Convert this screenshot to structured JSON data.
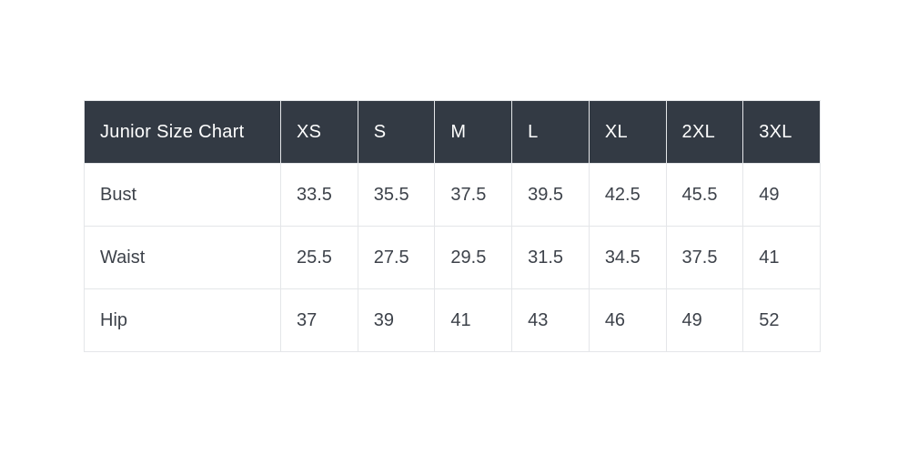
{
  "page": {
    "background_color": "#ffffff"
  },
  "table": {
    "title": "Junior Size Chart",
    "header_bg_color": "#333a44",
    "header_text_color": "#ffffff",
    "body_text_color": "#3d424a",
    "border_color": "#e4e6e9",
    "columns": [
      "XS",
      "S",
      "M",
      "L",
      "XL",
      "2XL",
      "3XL"
    ],
    "rows": [
      {
        "label": "Bust",
        "values": [
          "33.5",
          "35.5",
          "37.5",
          "39.5",
          "42.5",
          "45.5",
          "49"
        ]
      },
      {
        "label": "Waist",
        "values": [
          "25.5",
          "27.5",
          "29.5",
          "31.5",
          "34.5",
          "37.5",
          "41"
        ]
      },
      {
        "label": "Hip",
        "values": [
          "37",
          "39",
          "41",
          "43",
          "46",
          "49",
          "52"
        ]
      }
    ]
  },
  "chart_data": {
    "type": "table",
    "title": "Junior Size Chart",
    "columns": [
      "XS",
      "S",
      "M",
      "L",
      "XL",
      "2XL",
      "3XL"
    ],
    "rows": [
      {
        "label": "Bust",
        "values": [
          33.5,
          35.5,
          37.5,
          39.5,
          42.5,
          45.5,
          49
        ]
      },
      {
        "label": "Waist",
        "values": [
          25.5,
          27.5,
          29.5,
          31.5,
          34.5,
          37.5,
          41
        ]
      },
      {
        "label": "Hip",
        "values": [
          37,
          39,
          41,
          43,
          46,
          49,
          52
        ]
      }
    ]
  }
}
